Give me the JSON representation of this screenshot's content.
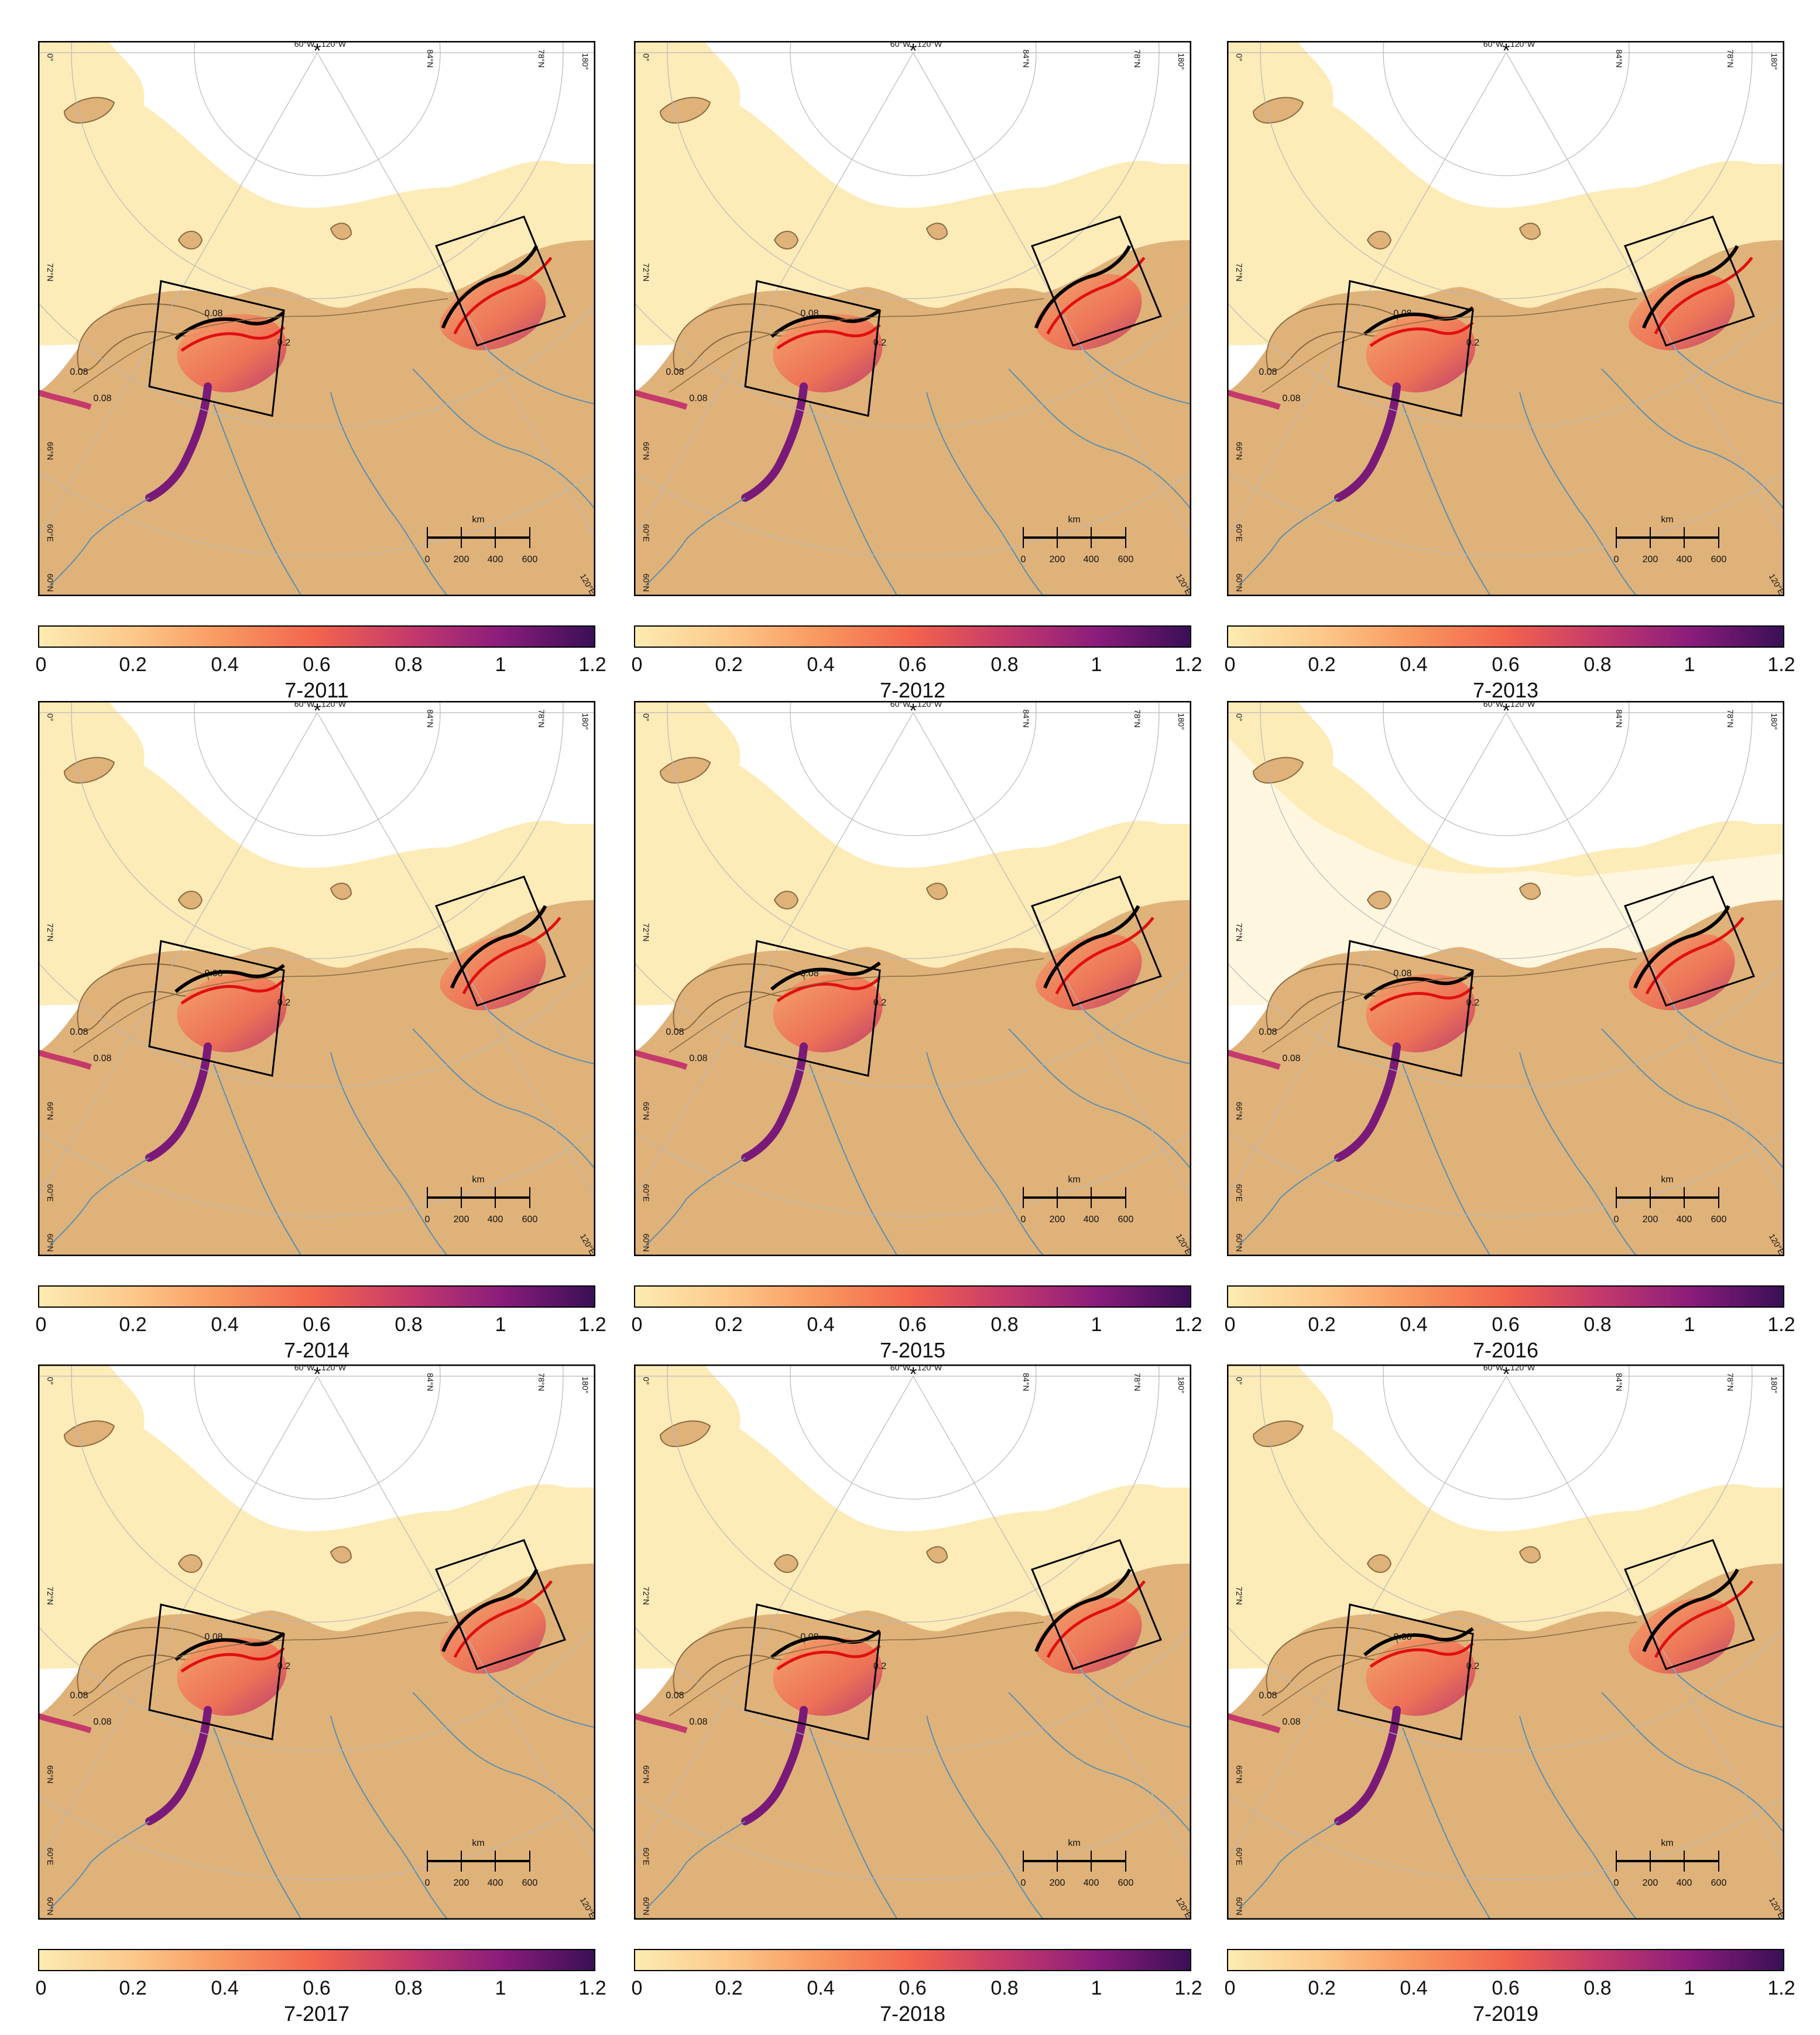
{
  "colorbar": {
    "ticks": [
      "0",
      "0.2",
      "0.4",
      "0.6",
      "0.8",
      "1",
      "1.2"
    ],
    "stops": [
      "#fcebb1",
      "#fcc98a",
      "#f99760",
      "#f2644d",
      "#c53a6b",
      "#8a1c7c",
      "#3a0f55"
    ]
  },
  "graticule": {
    "lon_top_left": "0°",
    "pole_a": "60°W",
    "pole_b": "120°W",
    "lat1": "84°N",
    "lat2": "78°N",
    "lon_top_right": "180°",
    "lat_left1": "72°N",
    "lat_left2": "66°N",
    "lon_left": "60°E",
    "lat_left3": "60°N",
    "lon_bottom_right": "120°E",
    "pole_marker": "*"
  },
  "scalebar": {
    "unit": "km",
    "ticks": [
      "0",
      "200",
      "400",
      "600"
    ]
  },
  "contour_labels": [
    "0.08",
    "0.2",
    "0.08",
    "0.08"
  ],
  "colors": {
    "land": "#dfb27a",
    "ice": "#fdebb8",
    "open_water": "#ffffff",
    "river": "#5a8fb0",
    "contour_black": "#000000",
    "contour_red": "#e01010"
  },
  "panels": [
    {
      "title": "7-2011"
    },
    {
      "title": "7-2012"
    },
    {
      "title": "7-2013"
    },
    {
      "title": "7-2014"
    },
    {
      "title": "7-2015"
    },
    {
      "title": "7-2016"
    },
    {
      "title": "7-2017"
    },
    {
      "title": "7-2018"
    },
    {
      "title": "7-2019"
    }
  ]
}
